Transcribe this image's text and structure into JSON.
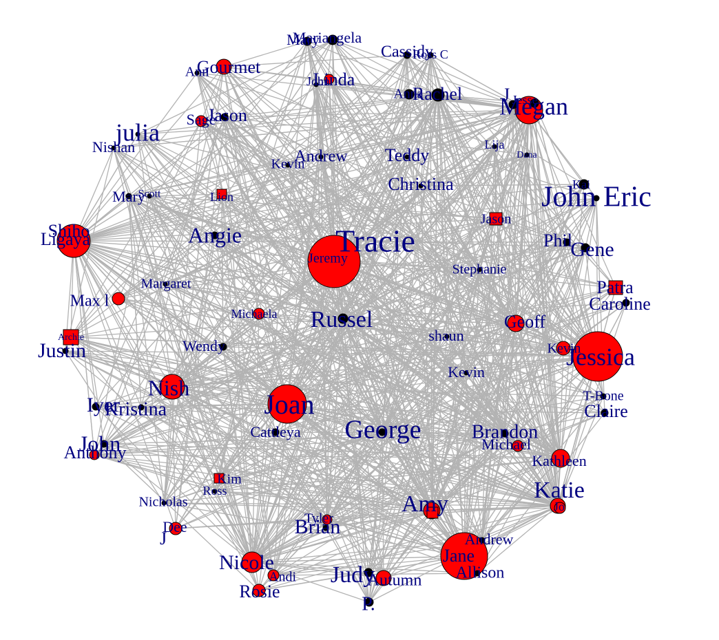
{
  "colors": {
    "female": "#ff0000",
    "male": "#000000",
    "label": "#000080",
    "edge": "#b3b3b3"
  },
  "network": {
    "nodes": [
      {
        "id": "Tracie",
        "label": "Tracie",
        "type": "female",
        "shape": "circle"
      },
      {
        "id": "Jessica",
        "label": "Jessica",
        "type": "female",
        "shape": "circle"
      },
      {
        "id": "Joan",
        "label": "Joan",
        "type": "female",
        "shape": "circle"
      },
      {
        "id": "Jane",
        "label": "Jane",
        "type": "female",
        "shape": "circle"
      },
      {
        "id": "Shiho",
        "label": "Shiho",
        "type": "female",
        "shape": "circle"
      },
      {
        "id": "Ligaya",
        "label": "Ligaya",
        "type": "female",
        "shape": "circle"
      },
      {
        "id": "Megan",
        "label": "Megan",
        "type": "female",
        "shape": "circle"
      },
      {
        "id": "Nish",
        "label": "Nish",
        "type": "female",
        "shape": "circle"
      },
      {
        "id": "Nicole",
        "label": "Nicole",
        "type": "female",
        "shape": "circle"
      },
      {
        "id": "Kathleen",
        "label": "Kathleen",
        "type": "female",
        "shape": "circle"
      },
      {
        "id": "Katie",
        "label": "Katie",
        "type": "female",
        "shape": "circle"
      },
      {
        "id": "Geoff",
        "label": "Geoff",
        "type": "female",
        "shape": "circle"
      },
      {
        "id": "Kevin2",
        "label": "Kevin",
        "type": "female",
        "shape": "circle"
      },
      {
        "id": "Autumn",
        "label": "Autumn",
        "type": "female",
        "shape": "circle"
      },
      {
        "id": "Amy",
        "label": "Amy",
        "type": "female",
        "shape": "circle"
      },
      {
        "id": "Gourmet",
        "label": "Gourmet",
        "type": "female",
        "shape": "circle"
      },
      {
        "id": "Linda",
        "label": "Linda",
        "type": "female",
        "shape": "circle"
      },
      {
        "id": "Sage",
        "label": "Sage",
        "type": "female",
        "shape": "circle"
      },
      {
        "id": "Maxl",
        "label": "Max l",
        "type": "female",
        "shape": "circle"
      },
      {
        "id": "Michaela",
        "label": "Michaela",
        "type": "female",
        "shape": "circle"
      },
      {
        "id": "Dee",
        "label": "Dee",
        "type": "female",
        "shape": "circle"
      },
      {
        "id": "Rosie",
        "label": "Rosie",
        "type": "female",
        "shape": "circle"
      },
      {
        "id": "Andi",
        "label": "Andi",
        "type": "female",
        "shape": "circle"
      },
      {
        "id": "Michael",
        "label": "Michael",
        "type": "female",
        "shape": "circle"
      },
      {
        "id": "Jo",
        "label": "Jo",
        "type": "female",
        "shape": "circle"
      },
      {
        "id": "Anthony",
        "label": "Anthony",
        "type": "female",
        "shape": "circle"
      },
      {
        "id": "Tyler",
        "label": "Tyler",
        "type": "female",
        "shape": "circle"
      },
      {
        "id": "Patra",
        "label": "Patra",
        "type": "female",
        "shape": "square"
      },
      {
        "id": "Archie",
        "label": "Archie",
        "type": "female",
        "shape": "square"
      },
      {
        "id": "Jason2",
        "label": "Jason",
        "type": "female",
        "shape": "square"
      },
      {
        "id": "Lion",
        "label": "Lion",
        "type": "female",
        "shape": "square"
      },
      {
        "id": "Kim",
        "label": "Kim",
        "type": "female",
        "shape": "square"
      },
      {
        "id": "Amyb",
        "label": "",
        "type": "female",
        "shape": "square"
      },
      {
        "id": "Russel",
        "label": "Russel",
        "type": "male",
        "shape": "circle"
      },
      {
        "id": "Rachel",
        "label": "Rachel",
        "type": "male",
        "shape": "circle"
      },
      {
        "id": "Jesus",
        "label": "J",
        "type": "male",
        "shape": "circle"
      },
      {
        "id": "Jesse",
        "label": "Jesse",
        "type": "male",
        "shape": "circle"
      },
      {
        "id": "Jason",
        "label": "Jason",
        "type": "male",
        "shape": "circle"
      },
      {
        "id": "Anna",
        "label": "Anna",
        "type": "male",
        "shape": "circle"
      },
      {
        "id": "Gene",
        "label": "Gene",
        "type": "male",
        "shape": "circle"
      },
      {
        "id": "Phil",
        "label": "Phil",
        "type": "male",
        "shape": "circle"
      },
      {
        "id": "Caroline",
        "label": "Caroline",
        "type": "male",
        "shape": "circle"
      },
      {
        "id": "Claire",
        "label": "Claire",
        "type": "male",
        "shape": "circle"
      },
      {
        "id": "TBone",
        "label": "T-Bone",
        "type": "male",
        "shape": "circle"
      },
      {
        "id": "Angie",
        "label": "Angie",
        "type": "male",
        "shape": "circle"
      },
      {
        "id": "Wendy",
        "label": "Wendy",
        "type": "male",
        "shape": "circle"
      },
      {
        "id": "Cattleya",
        "label": "Cattleya",
        "type": "male",
        "shape": "circle"
      },
      {
        "id": "George",
        "label": "George",
        "type": "male",
        "shape": "circle"
      },
      {
        "id": "Brandon",
        "label": "Brandon",
        "type": "male",
        "shape": "circle"
      },
      {
        "id": "Kevin",
        "label": "Kevin",
        "type": "male",
        "shape": "circle"
      },
      {
        "id": "shaun",
        "label": "shaun",
        "type": "male",
        "shape": "circle"
      },
      {
        "id": "Stephanie",
        "label": "Stephanie",
        "type": "male",
        "shape": "circle"
      },
      {
        "id": "Christina",
        "label": "Christina",
        "type": "male",
        "shape": "circle"
      },
      {
        "id": "Teddy",
        "label": "Teddy",
        "type": "male",
        "shape": "circle"
      },
      {
        "id": "Andrew",
        "label": "Andrew",
        "type": "male",
        "shape": "circle"
      },
      {
        "id": "Kevin3",
        "label": "Kevin",
        "type": "male",
        "shape": "circle"
      },
      {
        "id": "Margaret",
        "label": "Margaret",
        "type": "male",
        "shape": "circle"
      },
      {
        "id": "Mary",
        "label": "Mary",
        "type": "male",
        "shape": "circle"
      },
      {
        "id": "Scott",
        "label": "Scott",
        "type": "male",
        "shape": "circle"
      },
      {
        "id": "Justin",
        "label": "Justin",
        "type": "male",
        "shape": "circle"
      },
      {
        "id": "Iyer",
        "label": "Iyer",
        "type": "male",
        "shape": "circle"
      },
      {
        "id": "Kristina",
        "label": "Kristina",
        "type": "male",
        "shape": "circle"
      },
      {
        "id": "John",
        "label": "John",
        "type": "male",
        "shape": "circle"
      },
      {
        "id": "Nicholas",
        "label": "Nicholas",
        "type": "male",
        "shape": "circle"
      },
      {
        "id": "Ross",
        "label": "Ross",
        "type": "male",
        "shape": "circle"
      },
      {
        "id": "Judy",
        "label": "Judy",
        "type": "male",
        "shape": "circle"
      },
      {
        "id": "P",
        "label": "P.",
        "type": "male",
        "shape": "circle"
      },
      {
        "id": "Brian",
        "label": "Brian",
        "type": "male",
        "shape": "circle"
      },
      {
        "id": "Allison",
        "label": "Allison",
        "type": "male",
        "shape": "circle"
      },
      {
        "id": "Andrew2",
        "label": "Andrew",
        "type": "male",
        "shape": "circle"
      },
      {
        "id": "JohnEric",
        "label": "John Eric",
        "type": "male",
        "shape": "circle"
      },
      {
        "id": "Kai",
        "label": "Kai",
        "type": "male",
        "shape": "circle"
      },
      {
        "id": "Lija",
        "label": "Lija",
        "type": "male",
        "shape": "circle"
      },
      {
        "id": "Dana",
        "label": "Dana",
        "type": "male",
        "shape": "circle"
      },
      {
        "id": "Julia",
        "label": "julia",
        "type": "male",
        "shape": "circle"
      },
      {
        "id": "Nishan",
        "label": "Nishan",
        "type": "male",
        "shape": "circle"
      },
      {
        "id": "Ann",
        "label": "Ann",
        "type": "male",
        "shape": "circle"
      },
      {
        "id": "John2",
        "label": "John",
        "type": "male",
        "shape": "circle"
      },
      {
        "id": "Mariangela",
        "label": "Mariangela",
        "type": "male",
        "shape": "circle"
      },
      {
        "id": "Mary2",
        "label": "Mary",
        "type": "male",
        "shape": "circle"
      },
      {
        "id": "Cassidy",
        "label": "Cassidy",
        "type": "male",
        "shape": "circle"
      },
      {
        "id": "RossC",
        "label": "Ross C",
        "type": "male",
        "shape": "circle"
      },
      {
        "id": "Jeremy",
        "label": "Jeremy",
        "type": "male",
        "shape": "circle"
      },
      {
        "id": "J",
        "label": "J",
        "type": "male",
        "shape": "circle"
      }
    ]
  }
}
